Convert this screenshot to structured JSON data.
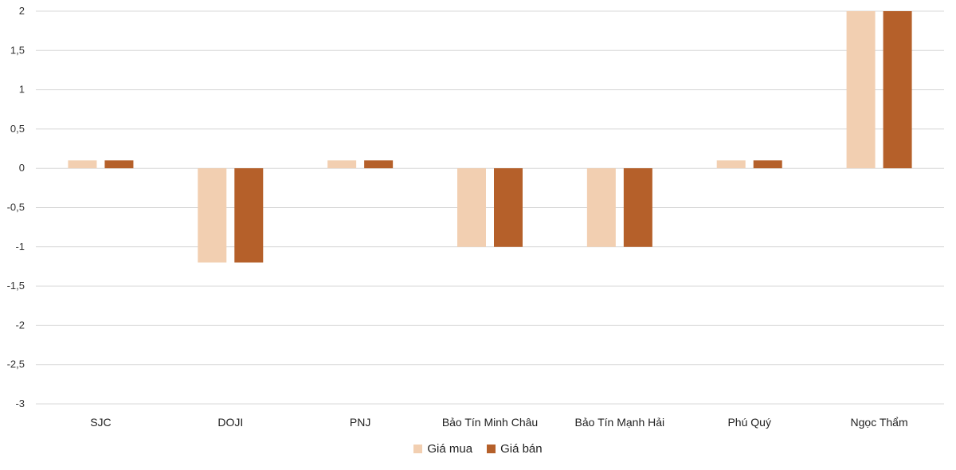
{
  "chart_data": {
    "type": "bar",
    "categories": [
      "SJC",
      "DOJI",
      "PNJ",
      "Bảo Tín Minh Châu",
      "Bảo Tín Mạnh Hải",
      "Phú Quý",
      "Ngọc Thẩm"
    ],
    "series": [
      {
        "name": "Giá mua",
        "color": "#F2CFB1",
        "values": [
          0.1,
          -1.2,
          0.1,
          -1,
          -1,
          0.1,
          2
        ]
      },
      {
        "name": "Giá bán",
        "color": "#B5602A",
        "values": [
          0.1,
          -1.2,
          0.1,
          -1,
          -1,
          0.1,
          2
        ]
      }
    ],
    "yticks": [
      "2",
      "1,5",
      "1",
      "0,5",
      "0",
      "-0,5",
      "-1",
      "-1,5",
      "-2",
      "-2,5",
      "-3"
    ],
    "ylim": [
      -3,
      2
    ],
    "grid": true,
    "legend_position": "bottom"
  }
}
